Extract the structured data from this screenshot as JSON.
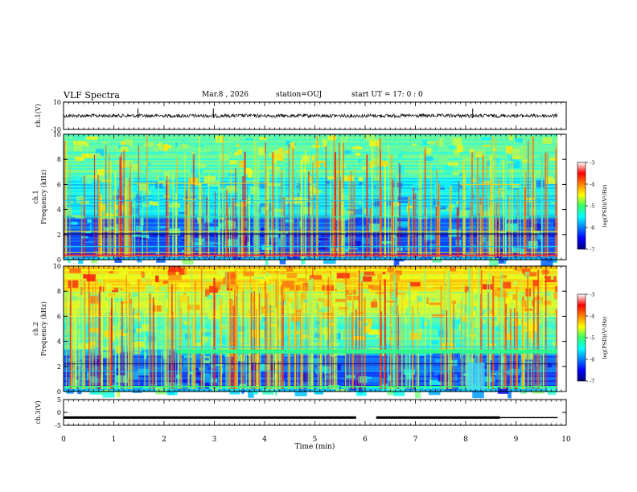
{
  "header": {
    "title": "VLF Spectra",
    "date": "Mar.8  , 2026",
    "station": "station=OUJ",
    "start": "start  UT  =   17: 0  : 0"
  },
  "chart_data": [
    {
      "type": "line",
      "name": "ch1-waveform",
      "ylabel": "ch.1(V)",
      "ylim": [
        -10,
        10
      ],
      "yticks": [
        "10",
        "-10"
      ],
      "xlim": [
        0,
        10
      ],
      "x": [
        0,
        1,
        2,
        3,
        4,
        5,
        6,
        7,
        8,
        9,
        9.83
      ],
      "values": [
        0,
        0,
        0,
        0,
        0,
        0,
        0,
        0,
        0,
        0,
        0
      ],
      "spikes_min": [
        1.48,
        2.98,
        8.14
      ],
      "color": "#000000"
    },
    {
      "type": "heatmap",
      "name": "ch1-spectrogram",
      "ylabel": "Frequency  (kHz)",
      "channel_label": "ch.1",
      "ylim": [
        0,
        10
      ],
      "yticks": [
        "0",
        "2",
        "4",
        "6",
        "8",
        "10"
      ],
      "xlim": [
        0,
        10
      ],
      "data_xmax": 9.83,
      "colorbar": {
        "label": "log(PSD)(V²/Hz)",
        "range": [
          -7,
          -3
        ],
        "ticks": [
          "-3",
          "-4",
          "-5",
          "-6",
          "-7"
        ]
      }
    },
    {
      "type": "heatmap",
      "name": "ch2-spectrogram",
      "ylabel": "Frequency  (kHz)",
      "channel_label": "ch.2",
      "ylim": [
        0,
        10
      ],
      "yticks": [
        "0",
        "2",
        "4",
        "6",
        "8",
        "10"
      ],
      "xlim": [
        0,
        10
      ],
      "data_xmax": 9.83,
      "colorbar": {
        "label": "log(PSD)(V²/Hz)",
        "range": [
          -7,
          -3
        ],
        "ticks": [
          "-3",
          "-4",
          "-5",
          "-6",
          "-7"
        ]
      }
    },
    {
      "type": "line",
      "name": "ch3-waveform",
      "ylabel": "ch.3(V)",
      "ylim": [
        -5,
        5
      ],
      "yticks": [
        "5",
        "0",
        "-5"
      ],
      "xlim": [
        0,
        10
      ],
      "segments": [
        [
          0,
          5.82,
          -2.0
        ],
        [
          6.22,
          8.68,
          -2.0
        ],
        [
          8.68,
          9.83,
          -2.0
        ]
      ],
      "xlabel": "Time  (min)",
      "xticks": [
        "0",
        "1",
        "2",
        "3",
        "4",
        "5",
        "6",
        "7",
        "8",
        "9",
        "10"
      ],
      "color": "#000000"
    }
  ]
}
